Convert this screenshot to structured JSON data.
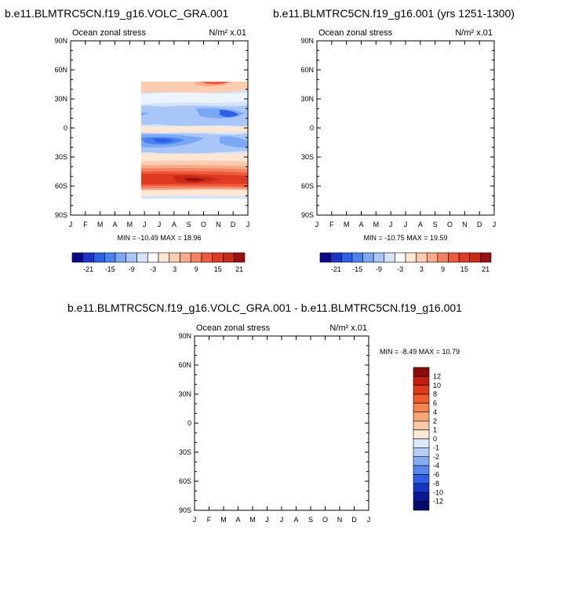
{
  "titles": {
    "left": "b.e11.BLMTRC5CN.f19_g16.VOLC_GRA.001",
    "right": "b.e11.BLMTRC5CN.f19_g16.001 (yrs 1251-1300)",
    "diff": "b.e11.BLMTRC5CN.f19_g16.VOLC_GRA.001 - b.e11.BLMTRC5CN.f19_g16.001"
  },
  "chart_data": [
    {
      "type": "heatmap",
      "title": "Ocean zonal stress",
      "units": "N/m² x.01",
      "x_categories": [
        "J",
        "F",
        "M",
        "A",
        "M",
        "J",
        "J",
        "A",
        "S",
        "O",
        "N",
        "D",
        "J"
      ],
      "y_ticks": [
        "90N",
        "60N",
        "30N",
        "0",
        "30S",
        "60S",
        "90S"
      ],
      "stats": "MIN = -10.49 MAX =  18.96",
      "colorbar_labels": [
        "-21",
        "-15",
        "-9",
        "-3",
        "3",
        "9",
        "15",
        "21"
      ],
      "colorbar_colors": [
        "#08088a",
        "#1c35c8",
        "#2c5ee6",
        "#4a82f0",
        "#7aa8f6",
        "#a8c6f8",
        "#d4e4fb",
        "#ffffff",
        "#fde6d3",
        "#fbcdb0",
        "#f8a988",
        "#f48262",
        "#ee5a3c",
        "#e03a22",
        "#c82a14",
        "#991010"
      ],
      "ylim": [
        -90,
        90
      ],
      "data_extent": [
        -72,
        78
      ]
    },
    {
      "type": "heatmap",
      "title": "Ocean zonal stress",
      "units": "N/m² x.01",
      "x_categories": [
        "J",
        "F",
        "M",
        "A",
        "M",
        "J",
        "J",
        "A",
        "S",
        "O",
        "N",
        "D",
        "J"
      ],
      "y_ticks": [
        "90N",
        "60N",
        "30N",
        "0",
        "30S",
        "60S",
        "90S"
      ],
      "stats": "MIN = -10.75 MAX =  19.59",
      "colorbar_labels": [
        "-21",
        "-15",
        "-9",
        "-3",
        "3",
        "9",
        "15",
        "21"
      ],
      "colorbar_colors": [
        "#08088a",
        "#1c35c8",
        "#2c5ee6",
        "#4a82f0",
        "#7aa8f6",
        "#a8c6f8",
        "#d4e4fb",
        "#ffffff",
        "#fde6d3",
        "#fbcdb0",
        "#f8a988",
        "#f48262",
        "#ee5a3c",
        "#e03a22",
        "#c82a14",
        "#991010"
      ],
      "ylim": [
        -90,
        90
      ],
      "data_extent": [
        -72,
        78
      ]
    },
    {
      "type": "heatmap",
      "title": "Ocean zonal stress",
      "units": "N/m² x.01",
      "x_categories": [
        "J",
        "F",
        "M",
        "A",
        "M",
        "J",
        "J",
        "A",
        "S",
        "O",
        "N",
        "D",
        "J"
      ],
      "y_ticks": [
        "90N",
        "60N",
        "30N",
        "0",
        "30S",
        "60S",
        "90S"
      ],
      "stats": "MIN =  -8.49 MAX =  10.79",
      "colorbar_labels": [
        "12",
        "10",
        "8",
        "6",
        "4",
        "2",
        "1",
        "0",
        "-1",
        "-2",
        "-4",
        "-6",
        "-8",
        "-10",
        "-12"
      ],
      "colorbar_colors": [
        "#8b0a0a",
        "#c21d0e",
        "#e0391a",
        "#f25a2e",
        "#f7824e",
        "#f9a675",
        "#fbc9a5",
        "#fde9d8",
        "#dbe8fb",
        "#b5cef8",
        "#86acf3",
        "#5686ee",
        "#2d5fe6",
        "#1535c2",
        "#0a1896",
        "#050a6e"
      ],
      "ylim": [
        -90,
        90
      ],
      "data_extent": [
        -66,
        78
      ]
    }
  ]
}
